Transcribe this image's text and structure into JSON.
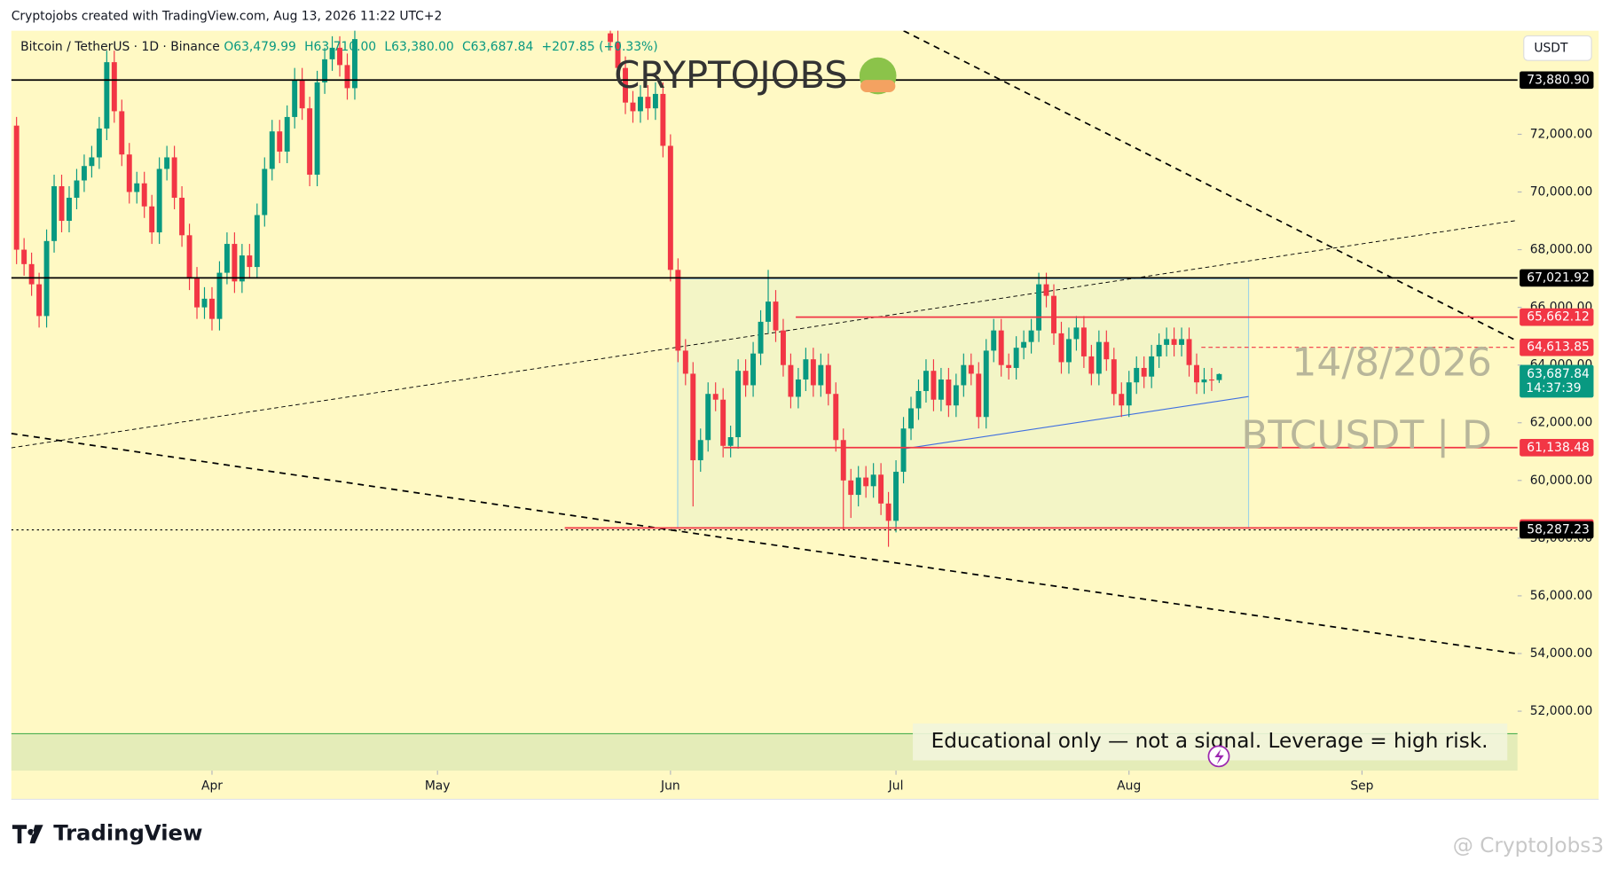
{
  "page": {
    "attribution": "Cryptojobs created with TradingView.com, Aug 13, 2026 11:22 UTC+2",
    "brand": "TradingView",
    "credit": "@ CryptoJobs3"
  },
  "chart_data": {
    "type": "candlestick",
    "symbol": "Bitcoin / TetherUS · 1D · Binance",
    "ohlc_header": [
      "O63,479.99",
      "H63,710.00",
      "L63,380.00",
      "C63,687.84",
      "+207.85 (+0.33%)"
    ],
    "currency": "USDT",
    "watermarks": [
      "CRYPTOJOBS",
      "14/8/2026",
      "BTCUSDT | D"
    ],
    "note": "Educational only — not a signal. Leverage  = high risk.",
    "up_color": "#089981",
    "down_color": "#f23645",
    "xlim": [
      -0.7,
      199.7
    ],
    "ylim": [
      49940,
      75590
    ],
    "xticks": [
      {
        "value": 26,
        "label": "Apr"
      },
      {
        "value": 56,
        "label": "May"
      },
      {
        "value": 87,
        "label": "Jun"
      },
      {
        "value": 117,
        "label": "Jul"
      },
      {
        "value": 148,
        "label": "Aug"
      },
      {
        "value": 179,
        "label": "Sep"
      }
    ],
    "yticks": [
      {
        "value": 52000,
        "label": "52,000.00"
      },
      {
        "value": 54000,
        "label": "54,000.00"
      },
      {
        "value": 56000,
        "label": "56,000.00"
      },
      {
        "value": 58000,
        "label": "58,000.00"
      },
      {
        "value": 60000,
        "label": "60,000.00"
      },
      {
        "value": 62000,
        "label": "62,000.00"
      },
      {
        "value": 64000,
        "label": "64,000.00"
      },
      {
        "value": 66000,
        "label": "66,000.00"
      },
      {
        "value": 68000,
        "label": "68,000.00"
      },
      {
        "value": 70000,
        "label": "70,000.00"
      },
      {
        "value": 72000,
        "label": "72,000.00"
      }
    ],
    "price_levels": [
      {
        "value": 73880.9,
        "label": "73,880.90",
        "color": "#000000",
        "style": "solid"
      },
      {
        "value": 67021.92,
        "label": "67,021.92",
        "color": "#000000",
        "style": "solid"
      },
      {
        "value": 65662.12,
        "label": "65,662.12",
        "color": "#f23645",
        "style": "solid"
      },
      {
        "value": 64613.85,
        "label": "64,613.85",
        "color": "#f23645",
        "style": "dashed"
      },
      {
        "value": 61138.48,
        "label": "61,138.48",
        "color": "#f23645",
        "style": "solid"
      },
      {
        "value": 58352.4,
        "label": "58,352.40",
        "color": "#f23645",
        "style": "solid"
      },
      {
        "value": 58287.23,
        "label": "58,287.23",
        "color": "#000000",
        "style": "dotted"
      }
    ],
    "last_price": {
      "value": 63687.84,
      "label": "63,687.84",
      "countdown": "14:37:39",
      "color": "#089981"
    },
    "candles": [
      [
        72300,
        72600,
        67500,
        68000
      ],
      [
        68000,
        68400,
        67100,
        67500
      ],
      [
        67500,
        67900,
        66400,
        66800
      ],
      [
        66800,
        67200,
        65300,
        65700
      ],
      [
        65700,
        68700,
        65300,
        68300
      ],
      [
        68300,
        70600,
        67900,
        70200
      ],
      [
        70200,
        70600,
        68600,
        69000
      ],
      [
        69000,
        70200,
        68600,
        69800
      ],
      [
        69800,
        70800,
        69400,
        70400
      ],
      [
        70400,
        71300,
        70000,
        70900
      ],
      [
        70900,
        71600,
        70500,
        71200
      ],
      [
        71200,
        72600,
        70800,
        72200
      ],
      [
        72200,
        74900,
        71800,
        74500
      ],
      [
        74500,
        74900,
        72400,
        72800
      ],
      [
        72800,
        73200,
        70900,
        71300
      ],
      [
        71300,
        71700,
        69600,
        70000
      ],
      [
        70000,
        70700,
        69600,
        70300
      ],
      [
        70300,
        70700,
        69100,
        69500
      ],
      [
        69500,
        69900,
        68200,
        68600
      ],
      [
        68600,
        71200,
        68200,
        70800
      ],
      [
        70800,
        71600,
        70400,
        71200
      ],
      [
        71200,
        71600,
        69400,
        69800
      ],
      [
        69800,
        70200,
        68100,
        68500
      ],
      [
        68500,
        68900,
        66600,
        67000
      ],
      [
        67000,
        67400,
        65600,
        66000
      ],
      [
        66000,
        66700,
        65600,
        66300
      ],
      [
        66300,
        66700,
        65200,
        65600
      ],
      [
        65600,
        67600,
        65200,
        67200
      ],
      [
        67200,
        68600,
        66800,
        68200
      ],
      [
        68200,
        68600,
        66500,
        66900
      ],
      [
        66900,
        68200,
        66500,
        67800
      ],
      [
        67800,
        68200,
        67000,
        67400
      ],
      [
        67400,
        69600,
        67000,
        69200
      ],
      [
        69200,
        71200,
        68800,
        70800
      ],
      [
        70800,
        72500,
        70400,
        72100
      ],
      [
        72100,
        72500,
        71000,
        71400
      ],
      [
        71400,
        73000,
        71000,
        72600
      ],
      [
        72600,
        74300,
        72200,
        73900
      ],
      [
        73900,
        74300,
        72500,
        72900
      ],
      [
        72900,
        73300,
        70200,
        70600
      ],
      [
        70600,
        74200,
        70200,
        73800
      ],
      [
        73800,
        75000,
        73400,
        74600
      ],
      [
        74600,
        75400,
        74200,
        75000
      ],
      [
        75000,
        75400,
        74000,
        74400
      ],
      [
        74400,
        74800,
        73200,
        73600
      ],
      [
        73600,
        75700,
        73200,
        75300
      ],
      null,
      null,
      null,
      null,
      null,
      null,
      null,
      null,
      null,
      null,
      null,
      null,
      null,
      null,
      null,
      null,
      null,
      null,
      null,
      null,
      null,
      null,
      null,
      null,
      null,
      null,
      null,
      null,
      null,
      null,
      null,
      null,
      null,
      [
        75500,
        75900,
        74900,
        75200
      ],
      [
        75200,
        75600,
        73900,
        74300
      ],
      [
        74300,
        74700,
        72700,
        73100
      ],
      [
        73100,
        73500,
        72400,
        72800
      ],
      [
        72800,
        73700,
        72400,
        73300
      ],
      [
        73300,
        73700,
        72500,
        72900
      ],
      [
        72900,
        73800,
        72500,
        73400
      ],
      [
        73400,
        73800,
        71200,
        71600
      ],
      [
        71600,
        72000,
        66900,
        67300
      ],
      [
        67300,
        67700,
        64100,
        64500
      ],
      [
        64500,
        64900,
        63300,
        63700
      ],
      [
        63700,
        64100,
        59100,
        60700
      ],
      [
        60700,
        61800,
        60300,
        61400
      ],
      [
        61400,
        63400,
        61000,
        63000
      ],
      [
        63000,
        63400,
        62400,
        62800
      ],
      [
        62800,
        63200,
        60800,
        61200
      ],
      [
        61200,
        61900,
        60800,
        61500
      ],
      [
        61500,
        64200,
        61100,
        63800
      ],
      [
        63800,
        64200,
        62900,
        63300
      ],
      [
        63300,
        64800,
        62900,
        64400
      ],
      [
        64400,
        65900,
        64000,
        65500
      ],
      [
        65500,
        67300,
        65100,
        66200
      ],
      [
        66200,
        66600,
        64800,
        65200
      ],
      [
        65200,
        65600,
        63600,
        64000
      ],
      [
        64000,
        64400,
        62500,
        62900
      ],
      [
        62900,
        63900,
        62500,
        63500
      ],
      [
        63500,
        64600,
        63100,
        64200
      ],
      [
        64200,
        64600,
        62900,
        63300
      ],
      [
        63300,
        64400,
        62900,
        64000
      ],
      [
        64000,
        64400,
        62600,
        63000
      ],
      [
        63000,
        63400,
        61000,
        61400
      ],
      [
        61400,
        61800,
        58300,
        60000
      ],
      [
        60000,
        60400,
        58700,
        59500
      ],
      [
        59500,
        60500,
        59100,
        60100
      ],
      [
        60100,
        60500,
        59400,
        59800
      ],
      [
        59800,
        60600,
        59400,
        60200
      ],
      [
        60200,
        60600,
        58800,
        59200
      ],
      [
        59200,
        59600,
        57700,
        58600
      ],
      [
        58600,
        60700,
        58200,
        60300
      ],
      [
        60300,
        62200,
        59900,
        61800
      ],
      [
        61800,
        62900,
        61400,
        62500
      ],
      [
        62500,
        63500,
        62100,
        63100
      ],
      [
        63100,
        64200,
        62700,
        63800
      ],
      [
        63800,
        64200,
        62400,
        62800
      ],
      [
        62800,
        63900,
        62400,
        63500
      ],
      [
        63500,
        63900,
        62200,
        62600
      ],
      [
        62600,
        63700,
        62200,
        63300
      ],
      [
        63300,
        64400,
        62900,
        64000
      ],
      [
        64000,
        64400,
        63300,
        63700
      ],
      [
        63700,
        64100,
        61800,
        62200
      ],
      [
        62200,
        64900,
        61800,
        64500
      ],
      [
        64500,
        65600,
        64100,
        65200
      ],
      [
        65200,
        65600,
        63600,
        64000
      ],
      [
        64000,
        64400,
        63500,
        63900
      ],
      [
        63900,
        65000,
        63500,
        64600
      ],
      [
        64600,
        65200,
        64200,
        64800
      ],
      [
        64800,
        65600,
        64400,
        65200
      ],
      [
        65200,
        67200,
        64800,
        66800
      ],
      [
        66800,
        67200,
        66000,
        66400
      ],
      [
        66400,
        66800,
        64700,
        65100
      ],
      [
        65100,
        65500,
        63700,
        64100
      ],
      [
        64100,
        65300,
        63700,
        64900
      ],
      [
        64900,
        65700,
        64500,
        65300
      ],
      [
        65300,
        65700,
        63900,
        64300
      ],
      [
        64300,
        64700,
        63300,
        63700
      ],
      [
        63700,
        65200,
        63300,
        64800
      ],
      [
        64800,
        65200,
        63800,
        64200
      ],
      [
        64200,
        64600,
        62600,
        63000
      ],
      [
        63000,
        63400,
        62200,
        62600
      ],
      [
        62600,
        63800,
        62200,
        63400
      ],
      [
        63400,
        64300,
        63000,
        63900
      ],
      [
        63900,
        64300,
        63200,
        63600
      ],
      [
        63600,
        64700,
        63200,
        64300
      ],
      [
        64300,
        65100,
        63900,
        64700
      ],
      [
        64700,
        65300,
        64300,
        64900
      ],
      [
        64900,
        65300,
        64300,
        64700
      ],
      [
        64700,
        65300,
        64300,
        64900
      ],
      [
        64900,
        65300,
        63600,
        64000
      ],
      [
        64000,
        64400,
        63000,
        63400
      ],
      [
        63400,
        63900,
        63000,
        63500
      ],
      [
        63500,
        63900,
        63100,
        63480
      ],
      [
        63479.99,
        63710,
        63380,
        63687.84
      ]
    ]
  }
}
